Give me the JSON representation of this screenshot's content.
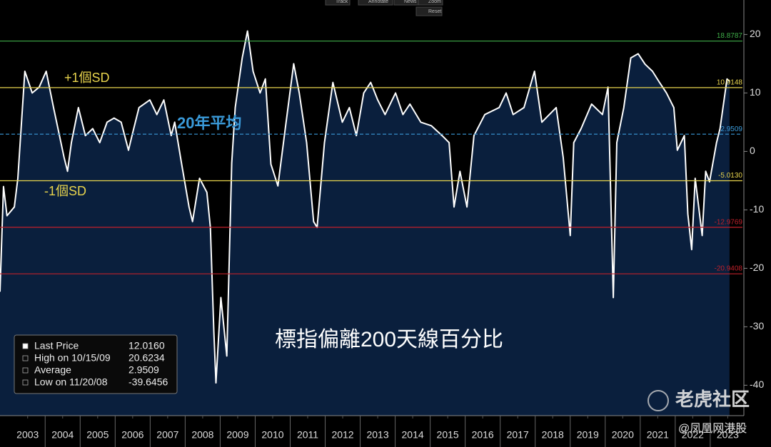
{
  "chart_data": {
    "type": "area",
    "title": "標指偏離200天線百分比",
    "annotations": [
      {
        "text": "+1個SD",
        "color": "#e8d44d"
      },
      {
        "text": "-1個SD",
        "color": "#e8d44d"
      },
      {
        "text": "20年平均",
        "color": "#3a9ad9"
      }
    ],
    "x": [
      2002.71,
      2002.81,
      2002.91,
      2003.12,
      2003.22,
      2003.42,
      2003.63,
      2003.83,
      2004.03,
      2004.24,
      2004.54,
      2004.64,
      2004.75,
      2004.95,
      2005.15,
      2005.36,
      2005.56,
      2005.77,
      2005.97,
      2006.17,
      2006.38,
      2006.48,
      2006.68,
      2006.99,
      2007.19,
      2007.39,
      2007.6,
      2007.7,
      2007.9,
      2008.11,
      2008.21,
      2008.41,
      2008.62,
      2008.72,
      2008.82,
      2008.88,
      2009.02,
      2009.19,
      2009.33,
      2009.43,
      2009.63,
      2009.78,
      2009.94,
      2010.14,
      2010.29,
      2010.45,
      2010.65,
      2010.86,
      2011.1,
      2011.26,
      2011.47,
      2011.67,
      2011.77,
      2011.98,
      2012.22,
      2012.49,
      2012.69,
      2012.89,
      2013.1,
      2013.3,
      2013.5,
      2013.71,
      2014.01,
      2014.22,
      2014.42,
      2014.73,
      2015.03,
      2015.34,
      2015.54,
      2015.68,
      2015.85,
      2016.05,
      2016.25,
      2016.56,
      2016.97,
      2017.17,
      2017.37,
      2017.68,
      2017.98,
      2018.19,
      2018.6,
      2018.8,
      2019.0,
      2019.1,
      2019.31,
      2019.61,
      2019.92,
      2020.08,
      2020.23,
      2020.33,
      2020.53,
      2020.73,
      2020.94,
      2021.14,
      2021.35,
      2021.55,
      2021.75,
      2021.96,
      2022.06,
      2022.26,
      2022.36,
      2022.47,
      2022.57,
      2022.77,
      2022.87,
      2022.98,
      2023.18,
      2023.28,
      2023.48,
      2023.55
    ],
    "values": [
      -24,
      -6,
      -11,
      -9.5,
      -4.6,
      13.7,
      10,
      11,
      13.7,
      7.5,
      -1,
      -3.4,
      1.5,
      7.5,
      2.7,
      3.9,
      1.5,
      5,
      5.7,
      5,
      0.2,
      2.7,
      7.5,
      8.8,
      6.3,
      8.8,
      2.7,
      5,
      -2.2,
      -9.5,
      -12,
      -4.6,
      -7,
      -13,
      -31,
      -39.6,
      -25,
      -35,
      -2,
      7.5,
      16,
      20.6,
      13.7,
      10,
      12.4,
      -2.2,
      -5.9,
      3.9,
      15,
      10,
      1.5,
      -12,
      -13,
      1.5,
      11.8,
      5,
      7.5,
      2.7,
      10,
      11.8,
      8.8,
      6.3,
      10,
      6.3,
      8.1,
      5,
      4.4,
      2.7,
      1.5,
      -9.5,
      -3.4,
      -9.5,
      2.7,
      6.3,
      7.5,
      10,
      6.3,
      7.5,
      13.7,
      5,
      7.5,
      -1,
      -14.4,
      1.5,
      3.9,
      8.1,
      6.3,
      11,
      -25,
      1.5,
      7.5,
      16,
      16.7,
      14.9,
      13.7,
      11.8,
      10,
      7.5,
      0.2,
      2.7,
      -10.7,
      -16.8,
      -4.6,
      -14.4,
      -3.4,
      -5.2,
      1.5,
      3.9,
      12.4,
      12
    ],
    "color": "#ffffff",
    "fill": "#0a1f3d",
    "xlim": [
      2002.71,
      2023.92
    ],
    "ylim": [
      -45.2,
      25.9
    ],
    "yticks": [
      -40,
      -30,
      -20,
      -10,
      0,
      10,
      20
    ],
    "xticks": [
      {
        "value": 2003.5,
        "label": "2003"
      },
      {
        "value": 2004.5,
        "label": "2004"
      },
      {
        "value": 2005.5,
        "label": "2005"
      },
      {
        "value": 2006.5,
        "label": "2006"
      },
      {
        "value": 2007.5,
        "label": "2007"
      },
      {
        "value": 2008.5,
        "label": "2008"
      },
      {
        "value": 2009.5,
        "label": "2009"
      },
      {
        "value": 2010.5,
        "label": "2010"
      },
      {
        "value": 2011.5,
        "label": "2011"
      },
      {
        "value": 2012.5,
        "label": "2012"
      },
      {
        "value": 2013.5,
        "label": "2013"
      },
      {
        "value": 2014.5,
        "label": "2014"
      },
      {
        "value": 2015.5,
        "label": "2015"
      },
      {
        "value": 2016.5,
        "label": "2016"
      },
      {
        "value": 2017.5,
        "label": "2017"
      },
      {
        "value": 2018.5,
        "label": "2018"
      },
      {
        "value": 2019.5,
        "label": "2019"
      },
      {
        "value": 2020.5,
        "label": "2020"
      },
      {
        "value": 2021.5,
        "label": "2021"
      },
      {
        "value": 2022.5,
        "label": "2022"
      },
      {
        "value": 2023.5,
        "label": "2023"
      }
    ],
    "reference_lines": [
      {
        "value": 18.8787,
        "label": "18.8787",
        "color": "#3fae49",
        "dashed": false
      },
      {
        "value": 10.9148,
        "label": "10.9148",
        "color": "#e8d44d",
        "dashed": false
      },
      {
        "value": 2.9509,
        "label": "2.9509",
        "color": "#3a9ad9",
        "dashed": true
      },
      {
        "value": -5.013,
        "label": "-5.0130",
        "color": "#e8d44d",
        "dashed": false
      },
      {
        "value": -12.9769,
        "label": "-12.9769",
        "color": "#c0202a",
        "dashed": false
      },
      {
        "value": -20.9408,
        "label": "-20.9408",
        "color": "#c0202a",
        "dashed": false
      }
    ],
    "legend_stats": [
      {
        "label": "Last Price",
        "value": "12.0160"
      },
      {
        "label": "High on 10/15/09",
        "value": "20.6234"
      },
      {
        "label": "Average",
        "value": "2.9509"
      },
      {
        "label": "Low on 11/20/08",
        "value": "-39.6456"
      }
    ]
  },
  "toolbar": [
    "Track",
    "Annotate",
    "News",
    "Zoom"
  ],
  "reset_button": "Reset",
  "watermarks": [
    "老虎社区",
    "@凤凰网港股"
  ]
}
